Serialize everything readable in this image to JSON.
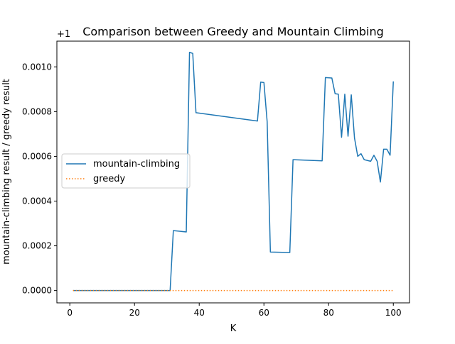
{
  "chart_data": {
    "type": "line",
    "title": "Comparison between Greedy and Mountain Climbing",
    "xlabel": "K",
    "ylabel": "mountain-climbing result / greedy result",
    "offset_label": "+1",
    "xlim": [
      -4,
      105
    ],
    "ylim": [
      -5.5e-05,
      0.001115
    ],
    "x_ticks": [
      0,
      20,
      40,
      60,
      80,
      100
    ],
    "x_tick_labels": [
      "0",
      "20",
      "40",
      "60",
      "80",
      "100"
    ],
    "y_ticks": [
      0,
      0.0002,
      0.0004,
      0.0006,
      0.0008,
      0.001
    ],
    "y_tick_labels": [
      "0.0000",
      "0.0002",
      "0.0004",
      "0.0006",
      "0.0008",
      "0.0010"
    ],
    "grid": false,
    "legend_position": "center-left",
    "series": [
      {
        "name": "mountain-climbing",
        "color": "#1f77b4",
        "style": "solid",
        "points": [
          [
            1,
            0.0
          ],
          [
            31,
            0.0
          ],
          [
            32,
            0.000268
          ],
          [
            36,
            0.000262
          ],
          [
            37,
            0.001065
          ],
          [
            38,
            0.00106
          ],
          [
            39,
            0.000795
          ],
          [
            58,
            0.000758
          ],
          [
            59,
            0.000932
          ],
          [
            60,
            0.00093
          ],
          [
            61,
            0.000755
          ],
          [
            62,
            0.000172
          ],
          [
            68,
            0.00017
          ],
          [
            69,
            0.000585
          ],
          [
            78,
            0.00058
          ],
          [
            79,
            0.000952
          ],
          [
            81,
            0.00095
          ],
          [
            82,
            0.00088
          ],
          [
            83,
            0.000878
          ],
          [
            84,
            0.000685
          ],
          [
            85,
            0.000878
          ],
          [
            86,
            0.00069
          ],
          [
            87,
            0.000875
          ],
          [
            88,
            0.000682
          ],
          [
            89,
            0.0006
          ],
          [
            90,
            0.000612
          ],
          [
            91,
            0.000585
          ],
          [
            93,
            0.000578
          ],
          [
            94,
            0.000605
          ],
          [
            95,
            0.000578
          ],
          [
            96,
            0.000485
          ],
          [
            97,
            0.000632
          ],
          [
            98,
            0.000632
          ],
          [
            99,
            0.000605
          ],
          [
            100,
            0.000935
          ]
        ]
      },
      {
        "name": "greedy",
        "color": "#ff7f0e",
        "style": "dotted",
        "points": [
          [
            1,
            0.0
          ],
          [
            100,
            0.0
          ]
        ]
      }
    ]
  }
}
